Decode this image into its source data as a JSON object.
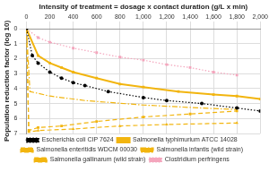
{
  "chart_data": {
    "type": "line",
    "x_label": "Intensity of treatment = dosage x contact duration (g/L x min)",
    "y_label": "Population reduction factor (log 10)",
    "xlim": [
      0,
      2000
    ],
    "xticks": [
      0,
      200,
      400,
      600,
      800,
      1000,
      1200,
      1400,
      1600,
      1800,
      2000
    ],
    "ylim": [
      0,
      7
    ],
    "yticks": [
      0,
      1,
      2,
      3,
      4,
      5,
      6,
      7
    ],
    "grid": true,
    "legend": "bottom",
    "series": [
      {
        "name": "Escherichia coli CIP 7624",
        "color": "#000000",
        "marker": "circle",
        "line_style": "dotted",
        "x": [
          0,
          50,
          100,
          200,
          300,
          400,
          500,
          700,
          1000,
          1200,
          1500,
          1800,
          2000
        ],
        "values": [
          0,
          1.8,
          2.3,
          2.9,
          3.3,
          3.6,
          3.8,
          4.2,
          4.6,
          4.8,
          5.0,
          5.3,
          5.5
        ]
      },
      {
        "name": "Salmonella typhimurium ATCC 14028",
        "color": "#f2b50f",
        "marker": "square",
        "line_style": "solid",
        "x": [
          0,
          100,
          200,
          300,
          400,
          600,
          800,
          1000,
          1300,
          1600,
          1800,
          2000
        ],
        "values": [
          0,
          1.8,
          2.3,
          2.6,
          2.9,
          3.3,
          3.7,
          3.9,
          4.2,
          4.4,
          4.5,
          4.7
        ]
      },
      {
        "name": "Salmonella enteritidis WDCM 00030",
        "color": "#f2b50f",
        "marker": "square",
        "line_style": "dashed",
        "x": [
          0,
          20,
          100,
          300,
          600,
          1000,
          1400,
          1800
        ],
        "values": [
          0,
          6.8,
          6.6,
          6.5,
          6.2,
          5.9,
          5.7,
          5.5
        ]
      },
      {
        "name": "Salmonella infantis (wild strain)",
        "color": "#f2b50f",
        "marker": "none",
        "line_style": "dashdot",
        "x": [
          0,
          30,
          200,
          500,
          1000,
          1500,
          1800
        ],
        "values": [
          0,
          4.2,
          4.5,
          4.8,
          5.1,
          5.3,
          5.4
        ]
      },
      {
        "name": "Salmonella gallinarum (wild strain)",
        "color": "#f2b50f",
        "marker": "triangle",
        "line_style": "dashed",
        "x": [
          0,
          20,
          100,
          400,
          800,
          1200,
          1800
        ],
        "values": [
          0,
          6.9,
          6.8,
          6.7,
          6.5,
          6.4,
          6.3
        ]
      },
      {
        "name": "Clostridium perfringens",
        "color": "#f4a6bd",
        "marker": "square",
        "line_style": "dotted",
        "x": [
          0,
          100,
          200,
          400,
          600,
          800,
          1000,
          1200,
          1400,
          1600,
          1800
        ],
        "values": [
          0,
          0.6,
          0.9,
          1.3,
          1.6,
          1.9,
          2.1,
          2.4,
          2.6,
          2.9,
          3.1
        ]
      }
    ]
  }
}
